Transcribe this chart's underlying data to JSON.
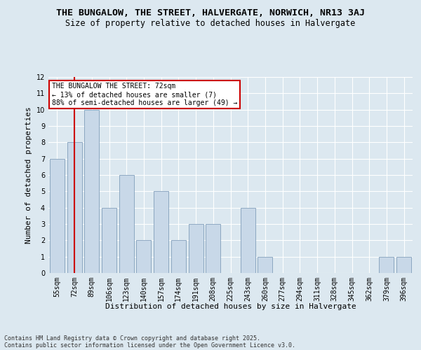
{
  "title_line1": "THE BUNGALOW, THE STREET, HALVERGATE, NORWICH, NR13 3AJ",
  "title_line2": "Size of property relative to detached houses in Halvergate",
  "xlabel": "Distribution of detached houses by size in Halvergate",
  "ylabel": "Number of detached properties",
  "categories": [
    "55sqm",
    "72sqm",
    "89sqm",
    "106sqm",
    "123sqm",
    "140sqm",
    "157sqm",
    "174sqm",
    "191sqm",
    "208sqm",
    "225sqm",
    "243sqm",
    "260sqm",
    "277sqm",
    "294sqm",
    "311sqm",
    "328sqm",
    "345sqm",
    "362sqm",
    "379sqm",
    "396sqm"
  ],
  "values": [
    7,
    8,
    10,
    4,
    6,
    2,
    5,
    2,
    3,
    3,
    0,
    4,
    1,
    0,
    0,
    0,
    0,
    0,
    0,
    1,
    1
  ],
  "bar_color": "#c8d8e8",
  "bar_edge_color": "#7090b0",
  "highlight_index": 1,
  "highlight_color": "#cc0000",
  "ylim": [
    0,
    12
  ],
  "yticks": [
    0,
    1,
    2,
    3,
    4,
    5,
    6,
    7,
    8,
    9,
    10,
    11,
    12
  ],
  "annotation_text": "THE BUNGALOW THE STREET: 72sqm\n← 13% of detached houses are smaller (7)\n88% of semi-detached houses are larger (49) →",
  "annotation_box_color": "#ffffff",
  "annotation_box_edge": "#cc0000",
  "footer_line1": "Contains HM Land Registry data © Crown copyright and database right 2025.",
  "footer_line2": "Contains public sector information licensed under the Open Government Licence v3.0.",
  "background_color": "#dce8f0",
  "plot_bg_color": "#dce8f0",
  "grid_color": "#ffffff",
  "title_fontsize": 9.5,
  "subtitle_fontsize": 8.5,
  "axis_label_fontsize": 8,
  "tick_fontsize": 7,
  "footer_fontsize": 6,
  "annotation_fontsize": 7
}
